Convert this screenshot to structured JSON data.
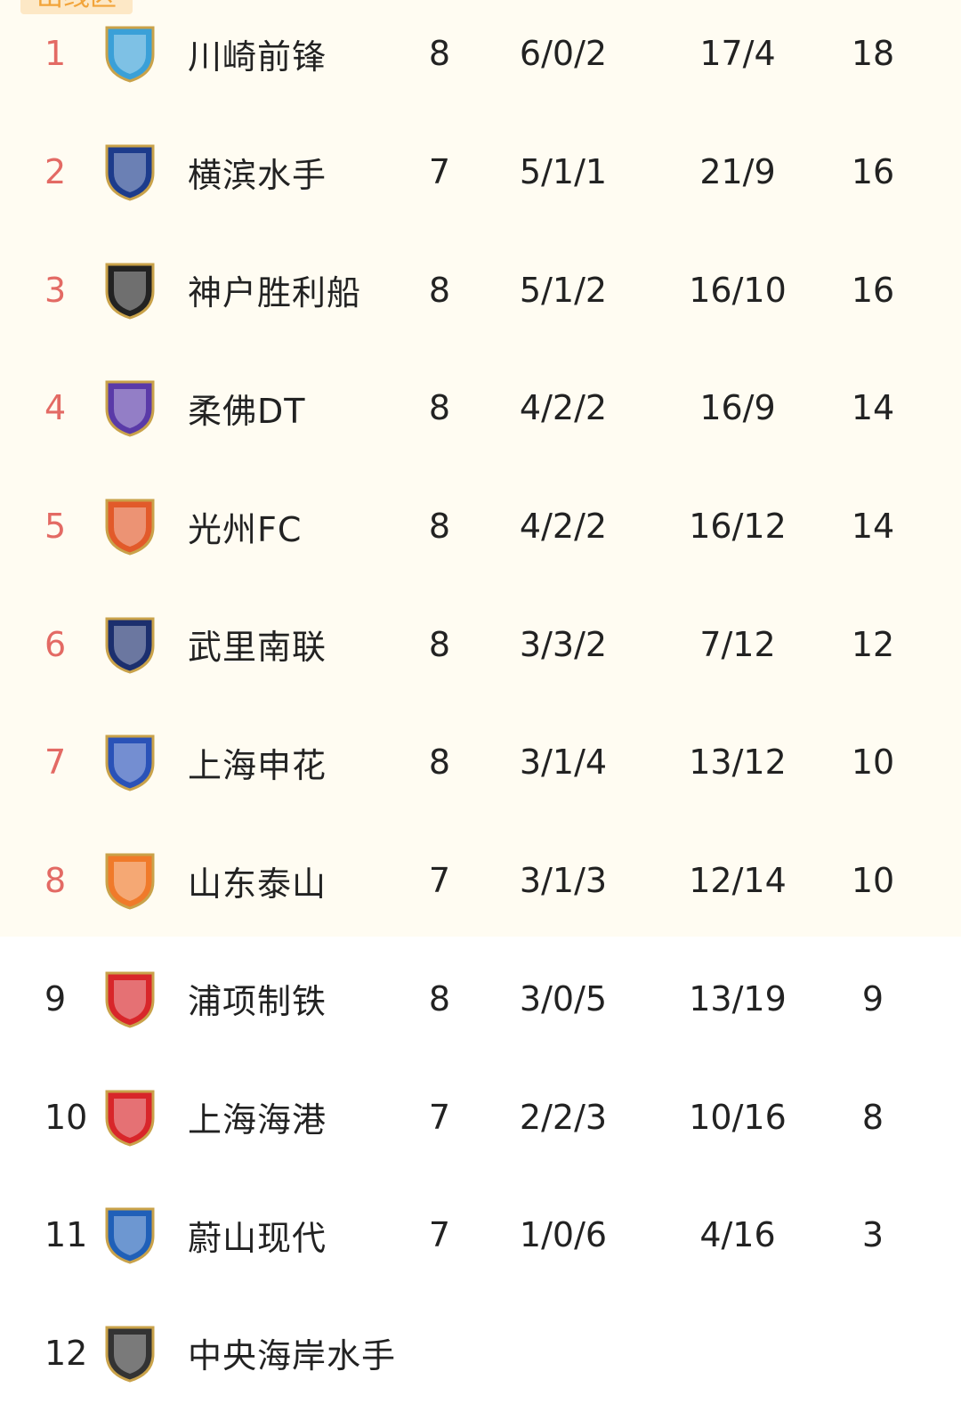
{
  "zone_label": "出线区",
  "colors": {
    "zone_bg": "#fffcf2",
    "qualified_rank": "#e36a64",
    "label_bg": "#fde8c6",
    "label_text": "#f2a43a"
  },
  "rows": [
    {
      "rank": "1",
      "team": "川崎前锋",
      "played": "8",
      "wdl": "6/0/2",
      "goals": "17/4",
      "pts": "18",
      "qualified": true,
      "crest_icon": "kawasaki-frontale-crest",
      "crest_color": "#3aa0d8"
    },
    {
      "rank": "2",
      "team": "横滨水手",
      "played": "7",
      "wdl": "5/1/1",
      "goals": "21/9",
      "pts": "16",
      "qualified": true,
      "crest_icon": "yokohama-marinos-crest",
      "crest_color": "#1d3c8c"
    },
    {
      "rank": "3",
      "team": "神户胜利船",
      "played": "8",
      "wdl": "5/1/2",
      "goals": "16/10",
      "pts": "16",
      "qualified": true,
      "crest_icon": "vissel-kobe-crest",
      "crest_color": "#222222"
    },
    {
      "rank": "4",
      "team": "柔佛DT",
      "played": "8",
      "wdl": "4/2/2",
      "goals": "16/9",
      "pts": "14",
      "qualified": true,
      "crest_icon": "johor-dt-crest",
      "crest_color": "#5a3aa8"
    },
    {
      "rank": "5",
      "team": "光州FC",
      "played": "8",
      "wdl": "4/2/2",
      "goals": "16/12",
      "pts": "14",
      "qualified": true,
      "crest_icon": "gwangju-fc-crest",
      "crest_color": "#e25a2a"
    },
    {
      "rank": "6",
      "team": "武里南联",
      "played": "8",
      "wdl": "3/3/2",
      "goals": "7/12",
      "pts": "12",
      "qualified": true,
      "crest_icon": "buriram-united-crest",
      "crest_color": "#1c2f6e"
    },
    {
      "rank": "7",
      "team": "上海申花",
      "played": "8",
      "wdl": "3/1/4",
      "goals": "13/12",
      "pts": "10",
      "qualified": true,
      "crest_icon": "shanghai-shenhua-crest",
      "crest_color": "#2a52b8"
    },
    {
      "rank": "8",
      "team": "山东泰山",
      "played": "7",
      "wdl": "3/1/3",
      "goals": "12/14",
      "pts": "10",
      "qualified": true,
      "crest_icon": "shandong-taishan-crest",
      "crest_color": "#f07a2a"
    },
    {
      "rank": "9",
      "team": "浦项制铁",
      "played": "8",
      "wdl": "3/0/5",
      "goals": "13/19",
      "pts": "9",
      "qualified": false,
      "crest_icon": "pohang-steelers-crest",
      "crest_color": "#d8262a"
    },
    {
      "rank": "10",
      "team": "上海海港",
      "played": "7",
      "wdl": "2/2/3",
      "goals": "10/16",
      "pts": "8",
      "qualified": false,
      "crest_icon": "shanghai-port-crest",
      "crest_color": "#d8262a"
    },
    {
      "rank": "11",
      "team": "蔚山现代",
      "played": "7",
      "wdl": "1/0/6",
      "goals": "4/16",
      "pts": "3",
      "qualified": false,
      "crest_icon": "ulsan-hd-crest",
      "crest_color": "#2060b8"
    },
    {
      "rank": "12",
      "team": "中央海岸水手",
      "played": "",
      "wdl": "",
      "goals": "",
      "pts": "",
      "qualified": false,
      "crest_icon": "central-coast-mariners-crest",
      "crest_color": "#333333"
    }
  ]
}
